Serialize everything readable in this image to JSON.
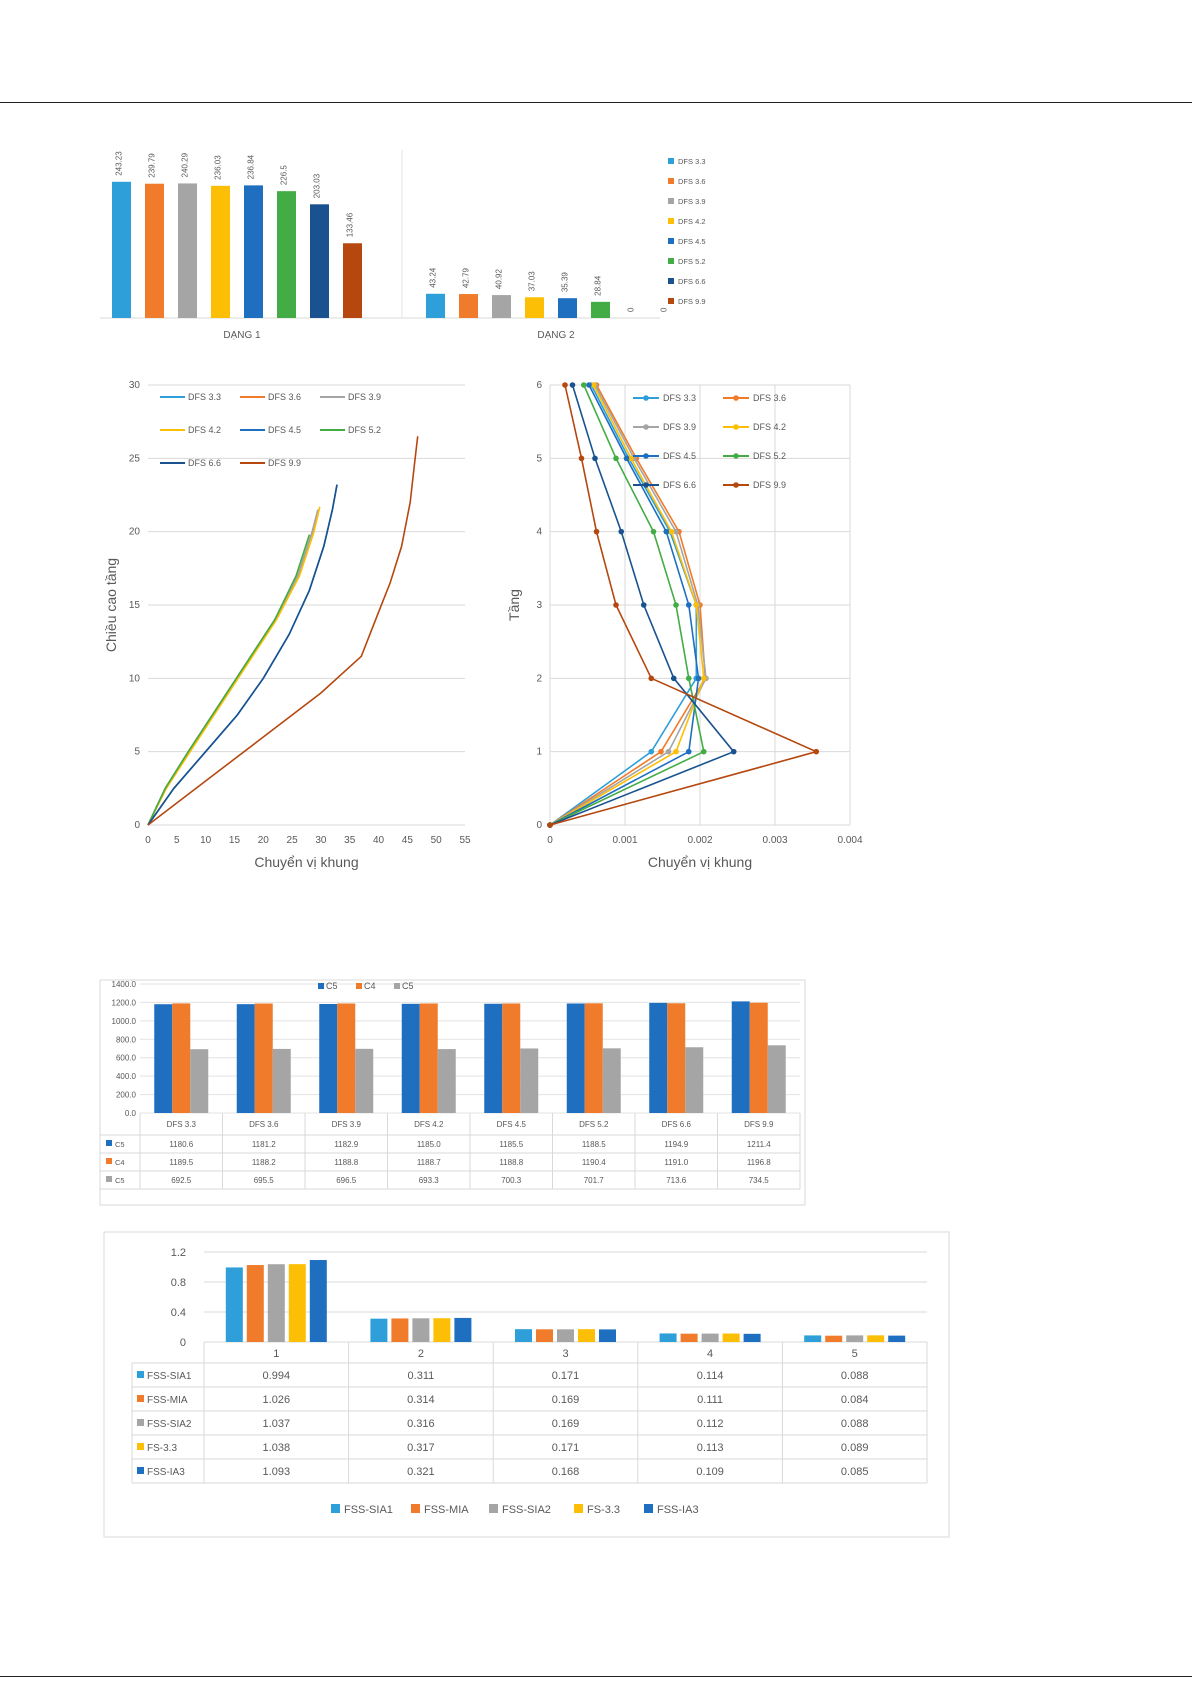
{
  "chart_data": [
    {
      "type": "bar",
      "categories": [
        "DẠNG 1",
        "DẠNG 2"
      ],
      "legend_position": "right",
      "legend": [
        "DFS 3.3",
        "DFS 3.6",
        "DFS 3.9",
        "DFS 4.2",
        "DFS 4.5",
        "DFS 5.2",
        "DFS 6.6",
        "DFS 9.9"
      ],
      "series": [
        {
          "name": "DFS 3.3",
          "color": "#2e9fd8",
          "values": [
            243.23,
            43.24
          ],
          "labels": [
            "243.23",
            "43.24"
          ]
        },
        {
          "name": "DFS 3.6",
          "color": "#f07b2a",
          "values": [
            239.79,
            42.79
          ],
          "labels": [
            "239.79",
            "42.79"
          ]
        },
        {
          "name": "DFS 3.9",
          "color": "#a5a5a5",
          "values": [
            240.29,
            40.92
          ],
          "labels": [
            "240.29",
            "40.92"
          ]
        },
        {
          "name": "DFS 4.2",
          "color": "#fcbf05",
          "values": [
            236.03,
            37.03
          ],
          "labels": [
            "236.03",
            "37.03"
          ]
        },
        {
          "name": "DFS 4.5",
          "color": "#1f6fc1",
          "values": [
            236.84,
            35.39
          ],
          "labels": [
            "236.84",
            "35.39"
          ]
        },
        {
          "name": "DFS 5.2",
          "color": "#44ac45",
          "values": [
            226.5,
            28.84
          ],
          "labels": [
            "226.5",
            "28.84"
          ]
        },
        {
          "name": "DFS 6.6",
          "color": "#19528f",
          "values": [
            203.03,
            0
          ],
          "labels": [
            "203.03",
            "0"
          ]
        },
        {
          "name": "DFS 9.9",
          "color": "#b5470f",
          "values": [
            133.46,
            0
          ],
          "labels": [
            "133.46",
            "0"
          ]
        }
      ]
    },
    {
      "type": "line",
      "xlabel": "Chuyển vị khung",
      "ylabel": "Chiều cao tầng",
      "xlim": [
        0,
        55
      ],
      "ylim": [
        0,
        30
      ],
      "xticks": [
        0,
        5,
        10,
        15,
        20,
        25,
        30,
        35,
        40,
        45,
        50,
        55
      ],
      "yticks": [
        0,
        5,
        10,
        15,
        20,
        25,
        30
      ],
      "legend_position": "top-left",
      "series": [
        {
          "name": "DFS 3.3",
          "color": "#2e9fd8",
          "points": [
            [
              0,
              0
            ],
            [
              3,
              2.5
            ],
            [
              7,
              5
            ],
            [
              12,
              8
            ],
            [
              17,
              11
            ],
            [
              22,
              14
            ],
            [
              26,
              17
            ],
            [
              28.5,
              20
            ],
            [
              29.5,
              21.5
            ]
          ]
        },
        {
          "name": "DFS 3.6",
          "color": "#f07b2a",
          "points": [
            [
              0,
              0
            ],
            [
              3,
              2.5
            ],
            [
              7,
              5
            ],
            [
              12,
              8
            ],
            [
              17,
              11
            ],
            [
              22,
              14
            ],
            [
              26,
              17
            ],
            [
              28.5,
              20
            ],
            [
              29.5,
              21.5
            ]
          ]
        },
        {
          "name": "DFS 3.9",
          "color": "#a5a5a5",
          "points": [
            [
              0,
              0
            ],
            [
              3,
              2.5
            ],
            [
              7,
              5
            ],
            [
              12,
              8
            ],
            [
              17,
              11
            ],
            [
              22,
              14
            ],
            [
              26,
              17
            ],
            [
              28.5,
              20
            ],
            [
              29.5,
              21.5
            ]
          ]
        },
        {
          "name": "DFS 4.2",
          "color": "#fcbf05",
          "points": [
            [
              0,
              0
            ],
            [
              3.2,
              2.5
            ],
            [
              7.3,
              5
            ],
            [
              12.3,
              8
            ],
            [
              17.3,
              11
            ],
            [
              22.3,
              14
            ],
            [
              26.3,
              17
            ],
            [
              28.8,
              20
            ],
            [
              29.8,
              21.7
            ]
          ]
        },
        {
          "name": "DFS 4.5",
          "color": "#1f6fc1",
          "points": [
            [
              0,
              0
            ],
            [
              4.5,
              2.5
            ],
            [
              10,
              5
            ],
            [
              15.5,
              7.5
            ],
            [
              20,
              10
            ],
            [
              24.5,
              13
            ],
            [
              28,
              16
            ],
            [
              30.5,
              19
            ],
            [
              32,
              21.5
            ],
            [
              32.8,
              23.2
            ]
          ]
        },
        {
          "name": "DFS 5.2",
          "color": "#44ac45",
          "points": [
            [
              0,
              0
            ],
            [
              3,
              2.5
            ],
            [
              7,
              5
            ],
            [
              12,
              8
            ],
            [
              17,
              11
            ],
            [
              22,
              14
            ],
            [
              25.7,
              17
            ],
            [
              28,
              19.8
            ]
          ]
        },
        {
          "name": "DFS 6.6",
          "color": "#19528f",
          "points": [
            [
              0,
              0
            ],
            [
              4.5,
              2.5
            ],
            [
              10,
              5
            ],
            [
              15.5,
              7.5
            ],
            [
              20,
              10
            ],
            [
              24.5,
              13
            ],
            [
              28,
              16
            ],
            [
              30.5,
              19
            ],
            [
              32,
              21.5
            ],
            [
              32.8,
              23.2
            ]
          ]
        },
        {
          "name": "DFS 9.9",
          "color": "#b5470f",
          "points": [
            [
              0,
              0
            ],
            [
              10,
              3
            ],
            [
              20,
              6
            ],
            [
              30,
              9
            ],
            [
              37,
              11.5
            ],
            [
              38.5,
              13
            ],
            [
              40,
              14.5
            ],
            [
              42,
              16.5
            ],
            [
              44,
              19
            ],
            [
              45.5,
              22
            ],
            [
              46.2,
              24.5
            ],
            [
              46.8,
              26.5
            ]
          ]
        }
      ]
    },
    {
      "type": "line",
      "xlabel": "Chuyển vị khung",
      "ylabel": "Tầng",
      "xlim": [
        0,
        0.004
      ],
      "ylim": [
        0,
        6
      ],
      "xticks": [
        "0",
        "0.001",
        "0.002",
        "0.003",
        "0.004"
      ],
      "yticks": [
        0,
        1,
        2,
        3,
        4,
        5,
        6
      ],
      "legend_position": "top-right",
      "series": [
        {
          "name": "DFS 3.3",
          "color": "#2e9fd8",
          "points": [
            [
              0,
              0
            ],
            [
              0.00135,
              1
            ],
            [
              0.00195,
              2
            ],
            [
              0.00195,
              3
            ],
            [
              0.0016,
              4
            ],
            [
              0.00105,
              5
            ],
            [
              0.00055,
              6
            ]
          ]
        },
        {
          "name": "DFS 3.6",
          "color": "#f07b2a",
          "points": [
            [
              0,
              0
            ],
            [
              0.00148,
              1
            ],
            [
              0.00207,
              2
            ],
            [
              0.002,
              3
            ],
            [
              0.00172,
              4
            ],
            [
              0.00115,
              5
            ],
            [
              0.00062,
              6
            ]
          ]
        },
        {
          "name": "DFS 3.9",
          "color": "#a5a5a5",
          "points": [
            [
              0,
              0
            ],
            [
              0.00158,
              1
            ],
            [
              0.00208,
              2
            ],
            [
              0.00197,
              3
            ],
            [
              0.00168,
              4
            ],
            [
              0.00112,
              5
            ],
            [
              0.0006,
              6
            ]
          ]
        },
        {
          "name": "DFS 4.2",
          "color": "#fcbf05",
          "points": [
            [
              0,
              0
            ],
            [
              0.00168,
              1
            ],
            [
              0.00205,
              2
            ],
            [
              0.00195,
              3
            ],
            [
              0.00162,
              4
            ],
            [
              0.00108,
              5
            ],
            [
              0.00058,
              6
            ]
          ]
        },
        {
          "name": "DFS 4.5",
          "color": "#1f6fc1",
          "points": [
            [
              0,
              0
            ],
            [
              0.00185,
              1
            ],
            [
              0.00198,
              2
            ],
            [
              0.00185,
              3
            ],
            [
              0.00155,
              4
            ],
            [
              0.00102,
              5
            ],
            [
              0.00052,
              6
            ]
          ]
        },
        {
          "name": "DFS 5.2",
          "color": "#44ac45",
          "points": [
            [
              0,
              0
            ],
            [
              0.00205,
              1
            ],
            [
              0.00185,
              2
            ],
            [
              0.00168,
              3
            ],
            [
              0.00138,
              4
            ],
            [
              0.00088,
              5
            ],
            [
              0.00045,
              6
            ]
          ]
        },
        {
          "name": "DFS 6.6",
          "color": "#19528f",
          "points": [
            [
              0,
              0
            ],
            [
              0.00245,
              1
            ],
            [
              0.00165,
              2
            ],
            [
              0.00125,
              3
            ],
            [
              0.00095,
              4
            ],
            [
              0.0006,
              5
            ],
            [
              0.0003,
              6
            ]
          ]
        },
        {
          "name": "DFS 9.9",
          "color": "#b5470f",
          "points": [
            [
              0,
              0
            ],
            [
              0.00355,
              1
            ],
            [
              0.00135,
              2
            ],
            [
              0.00088,
              3
            ],
            [
              0.00062,
              4
            ],
            [
              0.00042,
              5
            ],
            [
              0.0002,
              6
            ]
          ]
        }
      ]
    },
    {
      "type": "bar",
      "categories": [
        "DFS 3.3",
        "DFS 3.6",
        "DFS 3.9",
        "DFS 4.2",
        "DFS 4.5",
        "DFS 5.2",
        "DFS 6.6",
        "DFS 9.9"
      ],
      "ylim": [
        0,
        1400
      ],
      "yticks": [
        "0.0",
        "200.0",
        "400.0",
        "600.0",
        "800.0",
        "1000.0",
        "1200.0",
        "1400.0"
      ],
      "legend": [
        "C5",
        "C4",
        "C5"
      ],
      "legend_position": "top",
      "series": [
        {
          "name": "C5",
          "color": "#1f6fc1",
          "values": [
            1180.6,
            1181.2,
            1182.9,
            1185.0,
            1185.5,
            1188.5,
            1194.9,
            1211.4
          ],
          "labels": [
            "1180.6",
            "1181.2",
            "1182.9",
            "1185.0",
            "1185.5",
            "1188.5",
            "1194.9",
            "1211.4"
          ]
        },
        {
          "name": "C4",
          "color": "#f07b2a",
          "values": [
            1189.5,
            1188.2,
            1188.8,
            1188.7,
            1188.8,
            1190.4,
            1191.0,
            1196.8
          ],
          "labels": [
            "1189.5",
            "1188.2",
            "1188.8",
            "1188.7",
            "1188.8",
            "1190.4",
            "1191.0",
            "1196.8"
          ]
        },
        {
          "name": "C5",
          "color": "#a5a5a5",
          "values": [
            692.5,
            695.5,
            696.5,
            693.3,
            700.3,
            701.7,
            713.6,
            734.5
          ],
          "labels": [
            "692.5",
            "695.5",
            "696.5",
            "693.3",
            "700.3",
            "701.7",
            "713.6",
            "734.5"
          ]
        }
      ]
    },
    {
      "type": "bar",
      "categories": [
        "1",
        "2",
        "3",
        "4",
        "5"
      ],
      "ylim": [
        0,
        1.2
      ],
      "yticks": [
        "0",
        "0.4",
        "0.8",
        "1.2"
      ],
      "legend_position": "bottom",
      "series": [
        {
          "name": "FSS-SIA1",
          "color": "#2e9fd8",
          "values": [
            0.994,
            0.311,
            0.171,
            0.114,
            0.088
          ],
          "labels": [
            "0.994",
            "0.311",
            "0.171",
            "0.114",
            "0.088"
          ]
        },
        {
          "name": "FSS-MIA",
          "color": "#f07b2a",
          "values": [
            1.026,
            0.314,
            0.169,
            0.111,
            0.084
          ],
          "labels": [
            "1.026",
            "0.314",
            "0.169",
            "0.111",
            "0.084"
          ]
        },
        {
          "name": "FSS-SIA2",
          "color": "#a5a5a5",
          "values": [
            1.037,
            0.316,
            0.169,
            0.112,
            0.088
          ],
          "labels": [
            "1.037",
            "0.316",
            "0.169",
            "0.112",
            "0.088"
          ]
        },
        {
          "name": "FS-3.3",
          "color": "#fcbf05",
          "values": [
            1.038,
            0.317,
            0.171,
            0.113,
            0.089
          ],
          "labels": [
            "1.038",
            "0.317",
            "0.171",
            "0.113",
            "0.089"
          ]
        },
        {
          "name": "FSS-IA3",
          "color": "#1f6fc1",
          "values": [
            1.093,
            0.321,
            0.168,
            0.109,
            0.085
          ],
          "labels": [
            "1.093",
            "0.321",
            "0.168",
            "0.109",
            "0.085"
          ]
        }
      ]
    }
  ]
}
